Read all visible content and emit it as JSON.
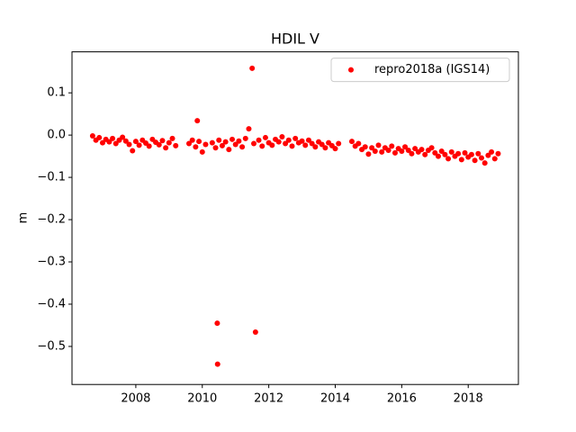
{
  "chart_data": {
    "type": "scatter",
    "title": "HDIL V",
    "y_label": "m",
    "x": [
      2006.7,
      2006.8,
      2006.9,
      2007.0,
      2007.1,
      2007.2,
      2007.3,
      2007.4,
      2007.5,
      2007.6,
      2007.7,
      2007.8,
      2007.9,
      2008.0,
      2008.1,
      2008.2,
      2008.3,
      2008.4,
      2008.5,
      2008.6,
      2008.7,
      2008.8,
      2008.9,
      2009.0,
      2009.1,
      2009.2,
      2009.6,
      2009.7,
      2009.8,
      2009.85,
      2009.9,
      2010.0,
      2010.1,
      2010.3,
      2010.4,
      2010.45,
      2010.46,
      2010.5,
      2010.6,
      2010.7,
      2010.8,
      2010.9,
      2011.0,
      2011.1,
      2011.2,
      2011.3,
      2011.4,
      2011.5,
      2011.55,
      2011.6,
      2011.7,
      2011.8,
      2011.9,
      2012.0,
      2012.1,
      2012.2,
      2012.3,
      2012.4,
      2012.5,
      2012.6,
      2012.7,
      2012.8,
      2012.9,
      2013.0,
      2013.1,
      2013.2,
      2013.3,
      2013.4,
      2013.5,
      2013.6,
      2013.7,
      2013.8,
      2013.9,
      2014.0,
      2014.1,
      2014.5,
      2014.6,
      2014.7,
      2014.8,
      2014.9,
      2015.0,
      2015.1,
      2015.2,
      2015.3,
      2015.4,
      2015.5,
      2015.6,
      2015.7,
      2015.8,
      2015.9,
      2016.0,
      2016.1,
      2016.2,
      2016.3,
      2016.4,
      2016.5,
      2016.6,
      2016.7,
      2016.8,
      2016.9,
      2017.0,
      2017.1,
      2017.2,
      2017.3,
      2017.4,
      2017.5,
      2017.6,
      2017.7,
      2017.8,
      2017.9,
      2018.0,
      2018.1,
      2018.2,
      2018.3,
      2018.4,
      2018.5,
      2018.6,
      2018.7,
      2018.8,
      2018.9
    ],
    "series": [
      {
        "name": "repro2018a (IGS14)",
        "color": "#ff0000",
        "values": [
          -0.002,
          -0.012,
          -0.006,
          -0.018,
          -0.01,
          -0.016,
          -0.008,
          -0.02,
          -0.012,
          -0.005,
          -0.014,
          -0.022,
          -0.037,
          -0.015,
          -0.024,
          -0.012,
          -0.019,
          -0.026,
          -0.01,
          -0.017,
          -0.023,
          -0.013,
          -0.03,
          -0.018,
          -0.008,
          -0.025,
          -0.02,
          -0.012,
          -0.028,
          0.034,
          -0.015,
          -0.04,
          -0.022,
          -0.018,
          -0.03,
          -0.445,
          -0.542,
          -0.012,
          -0.025,
          -0.016,
          -0.034,
          -0.01,
          -0.022,
          -0.014,
          -0.028,
          -0.008,
          0.015,
          0.158,
          -0.02,
          -0.466,
          -0.012,
          -0.026,
          -0.006,
          -0.018,
          -0.024,
          -0.01,
          -0.016,
          -0.004,
          -0.02,
          -0.012,
          -0.026,
          -0.008,
          -0.018,
          -0.014,
          -0.024,
          -0.012,
          -0.02,
          -0.028,
          -0.016,
          -0.022,
          -0.03,
          -0.018,
          -0.025,
          -0.032,
          -0.02,
          -0.015,
          -0.026,
          -0.02,
          -0.034,
          -0.028,
          -0.045,
          -0.03,
          -0.038,
          -0.024,
          -0.04,
          -0.03,
          -0.036,
          -0.026,
          -0.042,
          -0.032,
          -0.038,
          -0.028,
          -0.036,
          -0.044,
          -0.032,
          -0.04,
          -0.034,
          -0.046,
          -0.036,
          -0.03,
          -0.042,
          -0.05,
          -0.038,
          -0.046,
          -0.056,
          -0.04,
          -0.05,
          -0.044,
          -0.058,
          -0.042,
          -0.052,
          -0.046,
          -0.06,
          -0.044,
          -0.054,
          -0.066,
          -0.048,
          -0.04,
          -0.056,
          -0.044
        ]
      }
    ],
    "xlim": [
      2006.08,
      2019.51
    ],
    "xticks": [
      2008,
      2010,
      2012,
      2014,
      2016,
      2018
    ],
    "ylim": [
      -0.59,
      0.197
    ],
    "yticks": [
      {
        "value": -0.5,
        "label": "−0.5"
      },
      {
        "value": -0.4,
        "label": "−0.4"
      },
      {
        "value": -0.3,
        "label": "−0.3"
      },
      {
        "value": -0.2,
        "label": "−0.2"
      },
      {
        "value": -0.1,
        "label": "−0.1"
      },
      {
        "value": 0,
        "label": "0.0"
      },
      0.1
    ],
    "grid": false,
    "legend": "upper right"
  }
}
